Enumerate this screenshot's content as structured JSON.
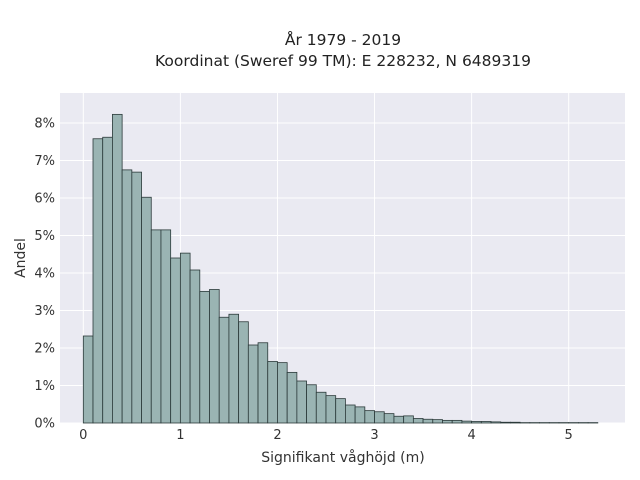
{
  "chart_data": {
    "type": "bar",
    "title_lines": [
      "År 1979 - 2019",
      "Koordinat (Sweref 99 TM): E 228232, N 6489319"
    ],
    "xlabel": "Signifikant våghöjd (m)",
    "ylabel": "Andel",
    "xlim": [
      -0.24,
      5.58
    ],
    "ylim": [
      0,
      8.8
    ],
    "x_ticks": [
      0,
      1,
      2,
      3,
      4,
      5
    ],
    "x_tick_labels": [
      "0",
      "1",
      "2",
      "3",
      "4",
      "5"
    ],
    "y_ticks": [
      0,
      1,
      2,
      3,
      4,
      5,
      6,
      7,
      8
    ],
    "y_tick_labels": [
      "0%",
      "1%",
      "2%",
      "3%",
      "4%",
      "5%",
      "6%",
      "7%",
      "8%"
    ],
    "grid": true,
    "background": "#eaeaf2",
    "bar_color": "#9ab4b3",
    "bin_start": 0.0,
    "bin_width": 0.1,
    "values": [
      2.32,
      7.58,
      7.62,
      8.23,
      6.75,
      6.69,
      6.02,
      5.15,
      5.15,
      4.4,
      4.53,
      4.08,
      3.51,
      3.56,
      2.82,
      2.9,
      2.7,
      2.08,
      2.14,
      1.64,
      1.61,
      1.35,
      1.12,
      1.02,
      0.82,
      0.73,
      0.65,
      0.48,
      0.43,
      0.33,
      0.3,
      0.25,
      0.18,
      0.19,
      0.12,
      0.1,
      0.09,
      0.07,
      0.07,
      0.05,
      0.04,
      0.04,
      0.03,
      0.02,
      0.02,
      0.01,
      0.01,
      0.01,
      0.01,
      0.01,
      0.01,
      0.01,
      0.01
    ]
  }
}
